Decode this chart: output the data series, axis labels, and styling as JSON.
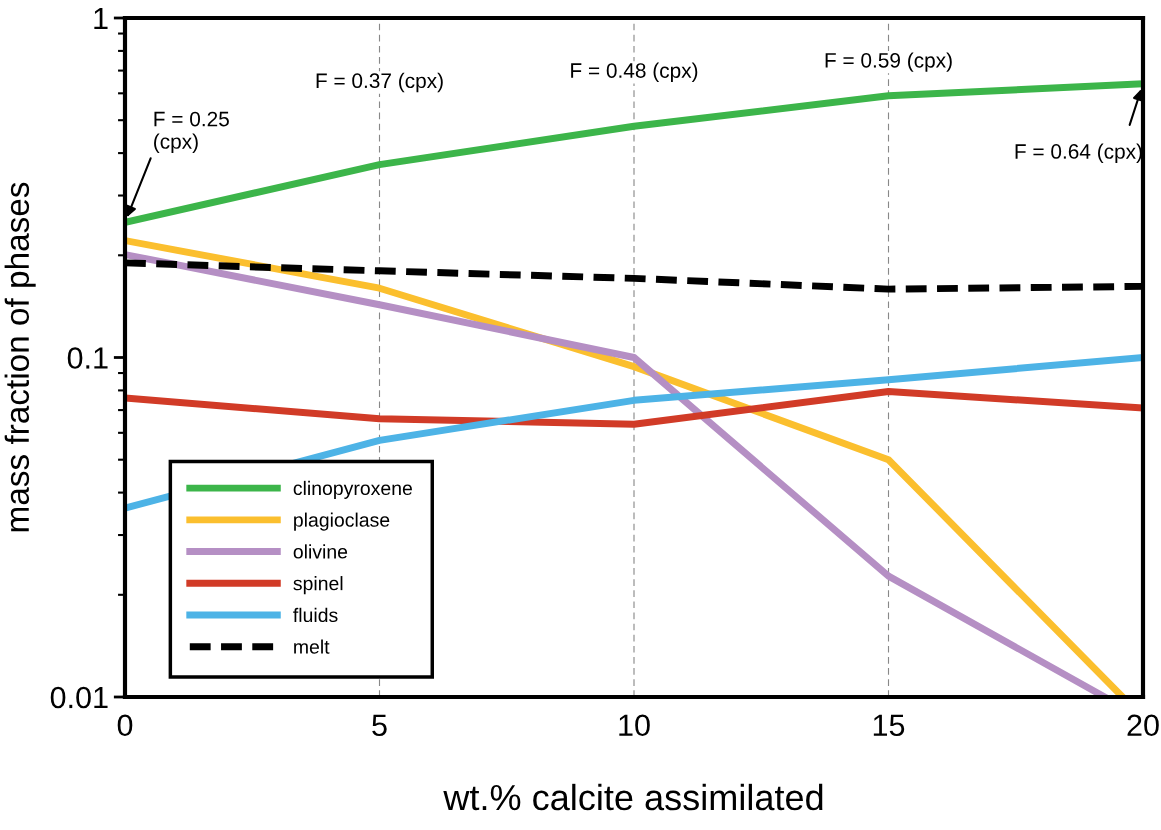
{
  "chart_data": {
    "type": "line",
    "xlabel": "wt.% calcite assimilated",
    "ylabel": "mass fraction of phases",
    "x": [
      0,
      5,
      10,
      15,
      20
    ],
    "series": [
      {
        "name": "clinopyroxene",
        "color": "#3cb54a",
        "values": [
          0.25,
          0.37,
          0.48,
          0.59,
          0.64
        ]
      },
      {
        "name": "plagioclase",
        "color": "#fbbf2e",
        "x": [
          0,
          5,
          10,
          15,
          19.6
        ],
        "values": [
          0.221,
          0.16,
          0.094,
          0.05,
          0.01
        ]
      },
      {
        "name": "olivine",
        "color": "#b58fc4",
        "x": [
          0,
          5,
          10,
          15,
          19.25
        ],
        "values": [
          0.201,
          0.143,
          0.1,
          0.0227,
          0.01
        ]
      },
      {
        "name": "spinel",
        "color": "#d13b27",
        "values": [
          0.076,
          0.066,
          0.0636,
          0.0794,
          0.071
        ]
      },
      {
        "name": "fluids",
        "color": "#4db3e6",
        "values": [
          0.036,
          0.057,
          0.0748,
          0.086,
          0.1
        ]
      },
      {
        "name": "melt",
        "color": "#000000",
        "line_style": "dashed",
        "values": [
          0.19,
          0.18,
          0.171,
          0.159,
          0.162
        ]
      }
    ],
    "log": "y",
    "xlim": [
      0,
      20
    ],
    "ylim": [
      0.01,
      1
    ],
    "xticks": [
      0,
      5,
      10,
      15,
      20
    ],
    "yticks": [
      0.01,
      0.1,
      1
    ],
    "grid": "x",
    "legend": "bottom left",
    "marker": "none",
    "annotations": [
      {
        "text": "F = 0.25\n(cpx)",
        "x": 0,
        "y": 0.25
      },
      "F = 0.37 (cpx)",
      "F = 0.48 (cpx)",
      "F = 0.59 (cpx)",
      {
        "text": "F = 0.64 (cpx)",
        "x": 20,
        "y": 0.64
      }
    ]
  }
}
